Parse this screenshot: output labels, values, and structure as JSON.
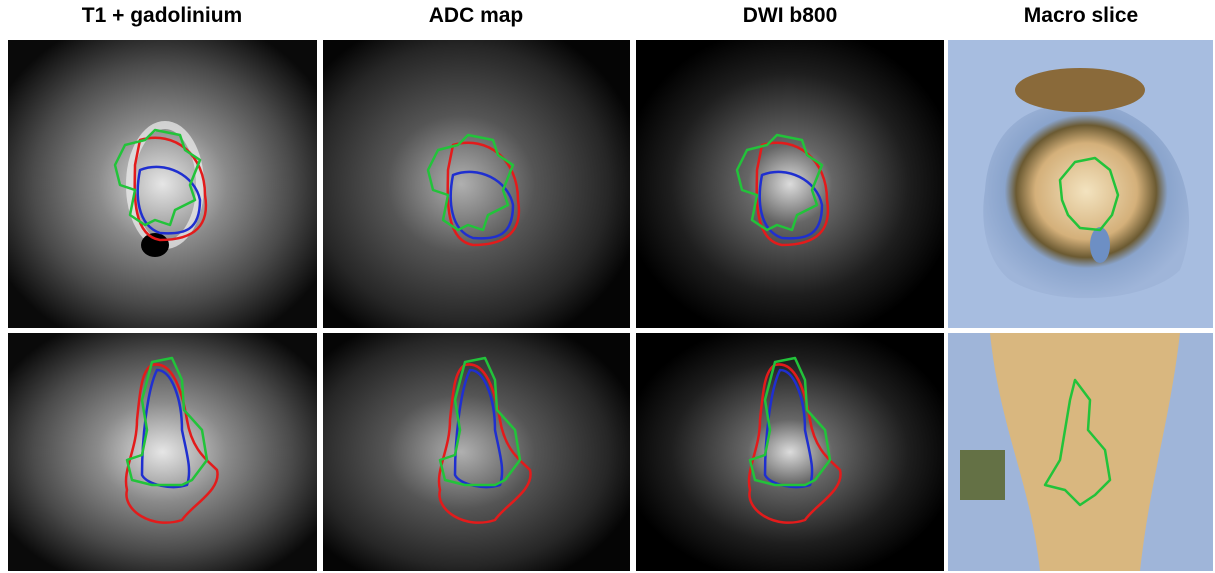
{
  "columns": [
    {
      "title": "T1 + gadolinium"
    },
    {
      "title": "ADC map"
    },
    {
      "title": "DWI b800"
    },
    {
      "title": "Macro slice"
    }
  ]
}
